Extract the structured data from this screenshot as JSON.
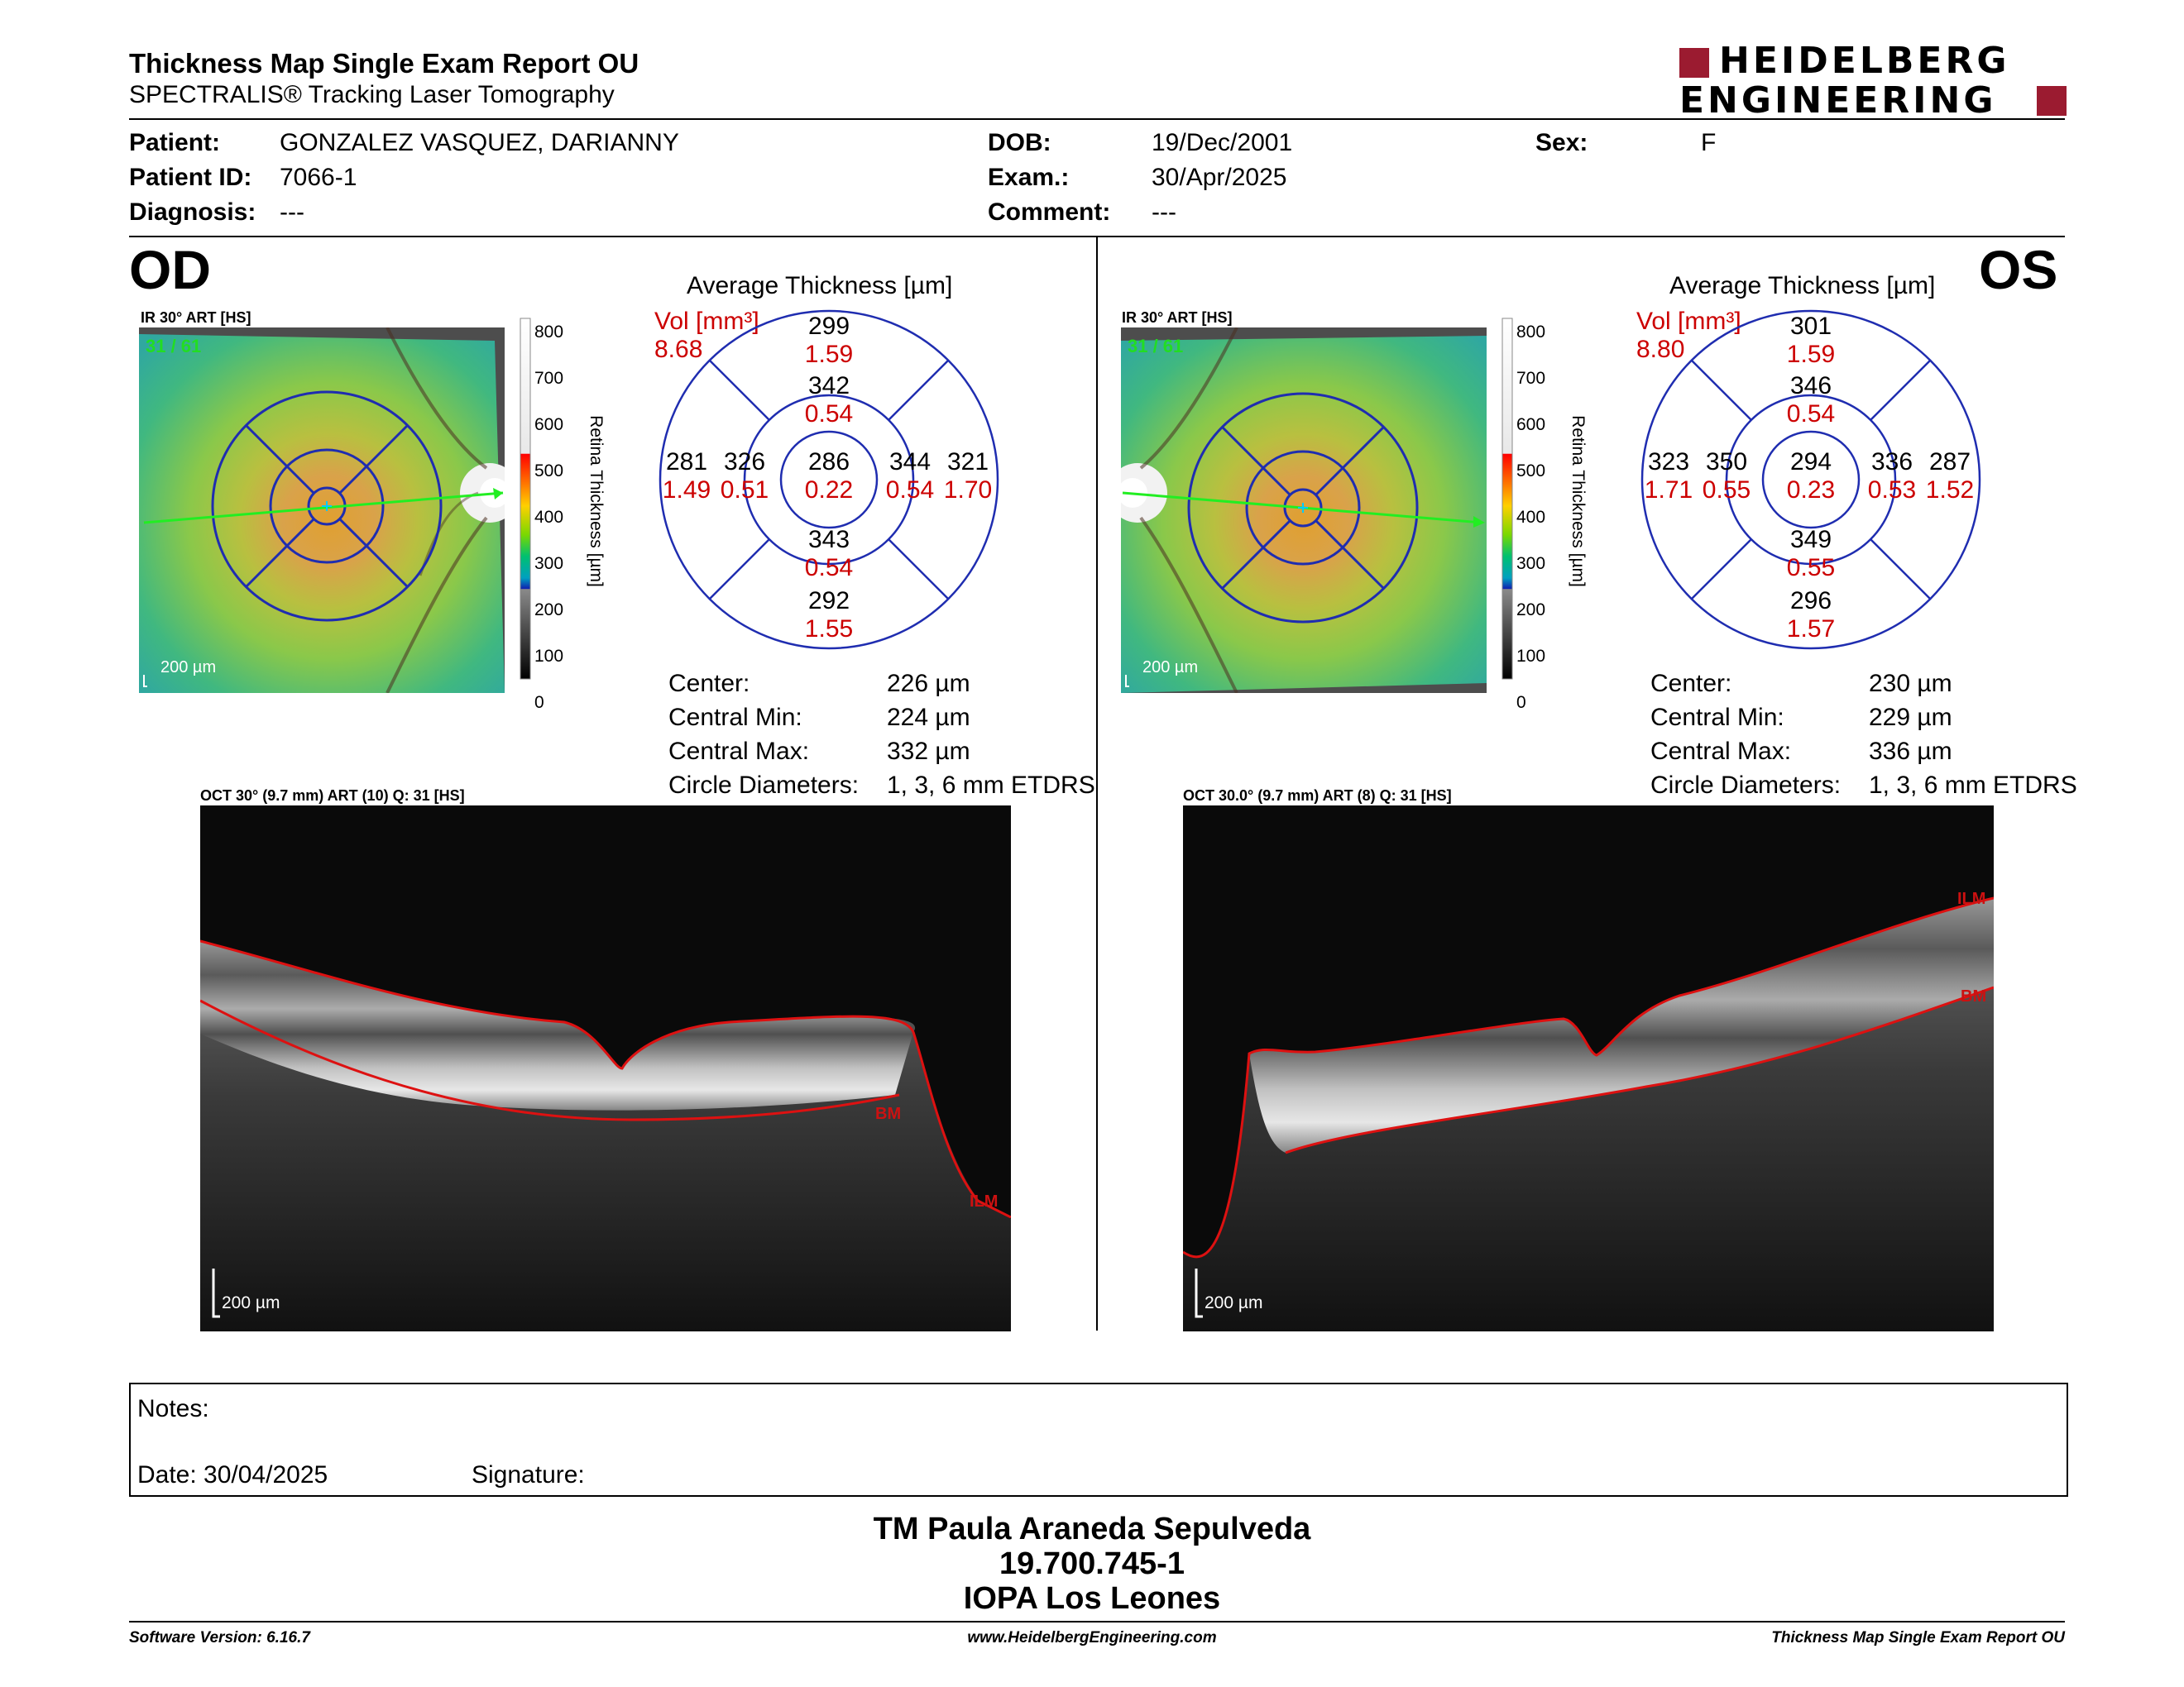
{
  "header": {
    "title": "Thickness Map Single Exam Report OU",
    "subtitle": "SPECTRALIS® Tracking Laser Tomography",
    "logo_line1": "HEIDELBERG",
    "logo_line2": "ENGINEERING"
  },
  "patient": {
    "patient_label": "Patient:",
    "patient_value": "GONZALEZ VASQUEZ, DARIANNY",
    "id_label": "Patient ID:",
    "id_value": "7066-1",
    "diagnosis_label": "Diagnosis:",
    "diagnosis_value": "---",
    "dob_label": "DOB:",
    "dob_value": "19/Dec/2001",
    "exam_label": "Exam.:",
    "exam_value": "30/Apr/2025",
    "comment_label": "Comment:",
    "comment_value": "---",
    "sex_label": "Sex:",
    "sex_value": "F"
  },
  "colorbar": {
    "title": "Retina Thickness [µm]",
    "ticks": [
      "800",
      "700",
      "600",
      "500",
      "400",
      "300",
      "200",
      "100",
      "0"
    ]
  },
  "od": {
    "eye_label": "OD",
    "fundus_label": "IR 30° ART [HS]",
    "frame_label": "31 / 61",
    "scale_label": "200 µm",
    "chart_title": "Average Thickness [µm]",
    "vol_label": "Vol [mm³]",
    "vol_value": "8.68",
    "grid": {
      "center": {
        "t": "286",
        "v": "0.22"
      },
      "inner_sup": {
        "t": "342",
        "v": "0.54"
      },
      "inner_inf": {
        "t": "343",
        "v": "0.54"
      },
      "inner_left": {
        "t": "326",
        "v": "0.51"
      },
      "inner_right": {
        "t": "344",
        "v": "0.54"
      },
      "outer_sup": {
        "t": "299",
        "v": "1.59"
      },
      "outer_inf": {
        "t": "292",
        "v": "1.55"
      },
      "outer_left": {
        "t": "281",
        "v": "1.49"
      },
      "outer_right": {
        "t": "321",
        "v": "1.70"
      }
    },
    "stats": [
      {
        "label": "Center:",
        "value": "226 µm"
      },
      {
        "label": "Central Min:",
        "value": "224 µm"
      },
      {
        "label": "Central Max:",
        "value": "332 µm"
      },
      {
        "label": "Circle Diameters:",
        "value": "1, 3, 6 mm ETDRS"
      }
    ],
    "oct_label": "OCT 30° (9.7 mm) ART (10) Q: 31 [HS]",
    "oct_scale": "200 µm",
    "ilm_label": "ILM",
    "bm_label": "BM"
  },
  "os": {
    "eye_label": "OS",
    "fundus_label": "IR 30° ART [HS]",
    "frame_label": "31 / 61",
    "scale_label": "200 µm",
    "chart_title": "Average Thickness [µm]",
    "vol_label": "Vol [mm³]",
    "vol_value": "8.80",
    "grid": {
      "center": {
        "t": "294",
        "v": "0.23"
      },
      "inner_sup": {
        "t": "346",
        "v": "0.54"
      },
      "inner_inf": {
        "t": "349",
        "v": "0.55"
      },
      "inner_left": {
        "t": "350",
        "v": "0.55"
      },
      "inner_right": {
        "t": "336",
        "v": "0.53"
      },
      "outer_sup": {
        "t": "301",
        "v": "1.59"
      },
      "outer_inf": {
        "t": "296",
        "v": "1.57"
      },
      "outer_left": {
        "t": "323",
        "v": "1.71"
      },
      "outer_right": {
        "t": "287",
        "v": "1.52"
      }
    },
    "stats": [
      {
        "label": "Center:",
        "value": "230 µm"
      },
      {
        "label": "Central Min:",
        "value": "229 µm"
      },
      {
        "label": "Central Max:",
        "value": "336 µm"
      },
      {
        "label": "Circle Diameters:",
        "value": "1, 3, 6 mm ETDRS"
      }
    ],
    "oct_label": "OCT 30.0° (9.7 mm) ART (8) Q: 31 [HS]",
    "oct_scale": "200 µm",
    "ilm_label": "ILM",
    "bm_label": "BM"
  },
  "notes": {
    "notes_label": "Notes:",
    "date_label": "Date: 30/04/2025",
    "signature_label": "Signature:"
  },
  "stamp": {
    "line1": "TM Paula Araneda Sepulveda",
    "line2": "19.700.745-1",
    "line3": "IOPA Los Leones"
  },
  "footer": {
    "software": "Software Version: 6.16.7",
    "website": "www.HeidelbergEngineering.com",
    "report": "Thickness Map Single Exam Report OU"
  },
  "colors": {
    "ring_blue": "#1f2db0",
    "value_red": "#cc0000",
    "logo_red": "#9b1b30",
    "frame_green": "#22dd22"
  }
}
